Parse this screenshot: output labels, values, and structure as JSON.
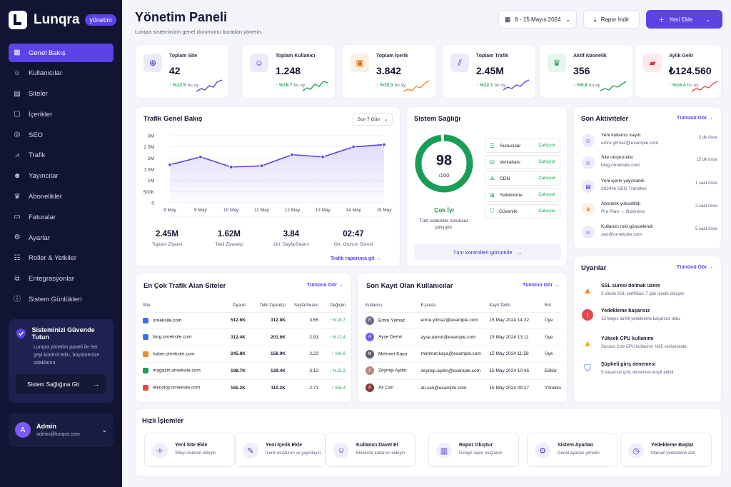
{
  "brand": {
    "name": "Lunqra",
    "badge": "yönetim"
  },
  "nav": [
    {
      "label": "Genel Bakış",
      "icon": "grid-icon",
      "active": true
    },
    {
      "label": "Kullanıcılar",
      "icon": "users-icon"
    },
    {
      "label": "Siteler",
      "icon": "document-icon"
    },
    {
      "label": "İçerikler",
      "icon": "file-icon"
    },
    {
      "label": "SEO",
      "icon": "target-icon"
    },
    {
      "label": "Trafik",
      "icon": "chart-icon"
    },
    {
      "label": "Yayıncılar",
      "icon": "user-group-icon"
    },
    {
      "label": "Abonelikler",
      "icon": "crown-icon"
    },
    {
      "label": "Faturalar",
      "icon": "invoice-icon"
    },
    {
      "label": "Ayarlar",
      "icon": "gear-icon"
    },
    {
      "label": "Roller & Yetkiler",
      "icon": "roles-icon"
    },
    {
      "label": "Entegrasyonlar",
      "icon": "integration-icon"
    },
    {
      "label": "Sistem Günlükleri",
      "icon": "info-icon"
    }
  ],
  "security_card": {
    "title": "Sisteminizi Güvende Tutun",
    "text": "Lunqra yönetim paneli ile her şeyi kontrol edin, büyümenize odaklanın.",
    "button": "Sistem Sağlığına Git"
  },
  "profile": {
    "initial": "A",
    "name": "Admin",
    "email": "admin@lunqra.com"
  },
  "header": {
    "title": "Yönetim Paneli",
    "subtitle": "Lunqra sisteminizin genel durumunu buradan yönetin.",
    "date_range": "8 - 15 Mayıs 2024",
    "report_btn": "Rapor İndir",
    "add_btn": "Yeni Ekle"
  },
  "stats": [
    {
      "label": "Toplam Site",
      "value": "42",
      "change": "↑ %12.5",
      "suffix": "bu ay",
      "icon": "globe-icon",
      "color": "#5b43e6"
    },
    {
      "label": "Toplam Kullanıcı",
      "value": "1.248",
      "change": "↑ %18.7",
      "suffix": "bu ay",
      "icon": "user-icon",
      "color": "#5b43e6"
    },
    {
      "label": "Toplam İçerik",
      "value": "3.842",
      "change": "↑ %15.3",
      "suffix": "bu ay",
      "icon": "content-icon",
      "color": "#f08a24"
    },
    {
      "label": "Toplam Trafik",
      "value": "2.45M",
      "change": "↑ %22.1",
      "suffix": "bu ay",
      "icon": "traffic-icon",
      "color": "#5b43e6"
    },
    {
      "label": "Aktif Abonelik",
      "value": "356",
      "change": "↑ %9.8",
      "suffix": "bu ay",
      "icon": "crown-icon",
      "color": "#23a55a"
    },
    {
      "label": "Aylık Gelir",
      "value": "₺124.560",
      "change": "↑ %16.4",
      "suffix": "bu ay",
      "icon": "wallet-icon",
      "color": "#e5484d"
    }
  ],
  "traffic": {
    "title": "Trafik Genel Bakış",
    "period": "Son 7 Gün",
    "link": "Trafik raporuna git",
    "summary": [
      {
        "value": "2.45M",
        "label": "Toplam Ziyaret"
      },
      {
        "value": "1.62M",
        "label": "Tekil Ziyaretçi"
      },
      {
        "value": "3.84",
        "label": "Ort. Sayfa/Seans"
      },
      {
        "value": "02:47",
        "label": "Ort. Oturum Süresi"
      }
    ]
  },
  "chart_data": {
    "type": "area",
    "categories": [
      "8 May",
      "9 May",
      "10 May",
      "11 May",
      "12 May",
      "13 May",
      "14 May",
      "15 May"
    ],
    "values": [
      1.7,
      2.05,
      1.6,
      1.65,
      2.15,
      2.05,
      2.5,
      2.6
    ],
    "yticks": [
      "0",
      "500K",
      "1M",
      "1.5M",
      "2M",
      "2.5M",
      "3M"
    ],
    "ylim": [
      0,
      3
    ],
    "color": "#5b43e6"
  },
  "health": {
    "title": "Sistem Sağlığı",
    "score": "98",
    "max": "/100",
    "status": "Çok İyi",
    "desc": "Tüm sistemler sorunsuz çalışıyor.",
    "button": "Tüm kontrolleri görüntüle",
    "ratio": 0.98,
    "items": [
      {
        "label": "Sunucular",
        "status": "Çalışıyor",
        "icon": "server-icon"
      },
      {
        "label": "Veritabanı",
        "status": "Çalışıyor",
        "icon": "database-icon"
      },
      {
        "label": "CDN",
        "status": "Çalışıyor",
        "icon": "cdn-icon"
      },
      {
        "label": "Yedekleme",
        "status": "Çalışıyor",
        "icon": "backup-icon"
      },
      {
        "label": "Güvenlik",
        "status": "Çalışıyor",
        "icon": "shield-icon"
      }
    ]
  },
  "activity": {
    "title": "Son Aktiviteler",
    "link": "Tümünü Gör",
    "items": [
      {
        "title": "Yeni kullanıcı kaydı",
        "sub": "emre.yilmaz@example.com",
        "time": "2 dk önce",
        "icon": "user-icon",
        "color": "#5b43e6"
      },
      {
        "title": "Site oluşturuldu",
        "sub": "blog.orneksite.com",
        "time": "15 dk önce",
        "icon": "site-icon",
        "color": "#5b43e6"
      },
      {
        "title": "Yeni içerik yayınlandı",
        "sub": "2024'te SEO Trendleri",
        "time": "1 saat önce",
        "icon": "file-icon",
        "color": "#5b43e6"
      },
      {
        "title": "Abonelik yükseltildi",
        "sub": "Pro Plan → Business",
        "time": "3 saat önce",
        "icon": "crown-icon",
        "color": "#f08a24"
      },
      {
        "title": "Kullanıcı rolü güncellendi",
        "sub": "seo@orneksite.com",
        "time": "5 saat önce",
        "icon": "user-icon",
        "color": "#5b43e6"
      }
    ]
  },
  "alerts": {
    "title": "Uyarılar",
    "link": "Tümünü Gör",
    "items": [
      {
        "title": "SSL süresi dolmak üzere",
        "sub": "3 sitede SSL sertifikası 7 gün içinde doluyor.",
        "icon": "warning-icon",
        "color": "#f08a24"
      },
      {
        "title": "Yedekleme başarısız",
        "sub": "15 Mayıs tarihli yedekleme başarısız oldu.",
        "icon": "error-icon",
        "color": "#e5484d"
      },
      {
        "title": "Yüksek CPU kullanımı",
        "sub": "Sunucu 2'de CPU kullanımı %85 seviyesinde.",
        "icon": "warning-icon",
        "color": "#f5b014"
      },
      {
        "title": "Şüpheli giriş denemesi",
        "sub": "5 başarısız giriş denemesi tespit edildi.",
        "icon": "shield-icon",
        "color": "#3b6fe6"
      }
    ]
  },
  "sites": {
    "title": "En Çok Trafik Alan Siteler",
    "link": "Tümünü Gör",
    "columns": [
      "Site",
      "Ziyaret",
      "Tekil Ziyaretçi",
      "Sayfa/Seans",
      "Değişim"
    ],
    "rows": [
      {
        "site": "orneksite.com",
        "visits": "512.6K",
        "unique": "312.8K",
        "pps": "3.65",
        "change": "↑ %18.7",
        "color": "#3b6fe6"
      },
      {
        "site": "blog.orneksite.com",
        "visits": "312.4K",
        "unique": "201.6K",
        "pps": "2.91",
        "change": "↑ %12.4",
        "color": "#3b6fe6"
      },
      {
        "site": "haber.orneksite.com",
        "visits": "245.8K",
        "unique": "158.9K",
        "pps": "2.23",
        "change": "↑ %8.9",
        "color": "#f08a24"
      },
      {
        "site": "magazin.orneksite.com",
        "visits": "198.7K",
        "unique": "129.4K",
        "pps": "3.12",
        "change": "↑ %15.3",
        "color": "#1a9e56"
      },
      {
        "site": "teknoloji.orneksite.com",
        "visits": "165.2K",
        "unique": "110.2K",
        "pps": "2.71",
        "change": "↑ %6.4",
        "color": "#e5484d"
      }
    ]
  },
  "users": {
    "title": "Son Kayıt Olan Kullanıcılar",
    "link": "Tümünü Gör",
    "columns": [
      "Kullanıcı",
      "E-posta",
      "Kayıt Tarihi",
      "Rol"
    ],
    "rows": [
      {
        "name": "Emre Yılmaz",
        "email": "emre.yilmaz@example.com",
        "date": "15 May 2024 14:32",
        "role": "Üye",
        "initial": "E",
        "color": "#6d6f8a"
      },
      {
        "name": "Ayşe Demir",
        "email": "ayse.demir@example.com",
        "date": "15 May 2024 13:11",
        "role": "Üye",
        "initial": "A",
        "color": "#7a5af8"
      },
      {
        "name": "Mehmet Kaya",
        "email": "mehmet.kaya@example.com",
        "date": "15 May 2024 11:58",
        "role": "Üye",
        "initial": "M",
        "color": "#5b5f78"
      },
      {
        "name": "Zeynep Aydın",
        "email": "zeynep.aydin@example.com",
        "date": "15 May 2024 10:45",
        "role": "Editör",
        "initial": "Z",
        "color": "#b08a7a"
      },
      {
        "name": "Ali Can",
        "email": "ali.can@example.com",
        "date": "15 May 2024 09:27",
        "role": "Yönetici",
        "initial": "A",
        "color": "#8a3a3a"
      }
    ]
  },
  "quick": {
    "title": "Hızlı İşlemler",
    "items": [
      {
        "title": "Yeni Site Ekle",
        "sub": "Siteyi sisteme ekleyin",
        "icon": "plus-icon"
      },
      {
        "title": "Yeni İçerik Ekle",
        "sub": "İçerik oluşturun ve yayınlayın",
        "icon": "edit-icon"
      },
      {
        "title": "Kullanıcı Davet Et",
        "sub": "Ekibinize kullanıcı ekleyin",
        "icon": "invite-icon"
      },
      {
        "title": "Rapor Oluştur",
        "sub": "Detaylı rapor oluşturun",
        "icon": "report-icon"
      },
      {
        "title": "Sistem Ayarları",
        "sub": "Genel ayarları yönetin",
        "icon": "gear-icon"
      },
      {
        "title": "Yedekleme Başlat",
        "sub": "Manuel yedekleme alın",
        "icon": "backup-icon"
      }
    ]
  }
}
